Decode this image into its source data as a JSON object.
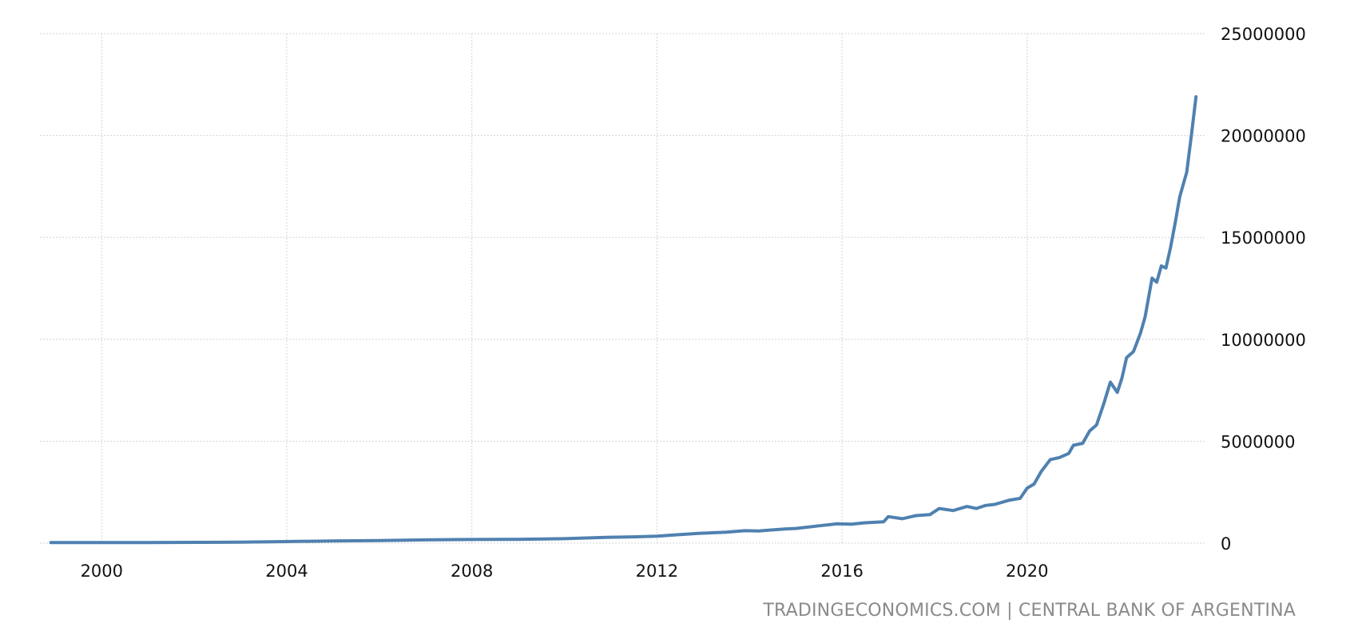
{
  "source": "TRADINGECONOMICS.COM | CENTRAL BANK OF ARGENTINA",
  "chart_data": {
    "type": "line",
    "title": "",
    "xlabel": "",
    "ylabel": "",
    "xlim": [
      1998.7,
      2023.75
    ],
    "ylim": [
      0,
      25000000
    ],
    "x_ticks": [
      2000,
      2004,
      2008,
      2012,
      2016,
      2020
    ],
    "x_tick_labels": [
      "2000",
      "2004",
      "2008",
      "2012",
      "2016",
      "2020"
    ],
    "y_ticks": [
      0,
      5000000,
      10000000,
      15000000,
      20000000,
      25000000
    ],
    "y_tick_labels": [
      "0",
      "5000000",
      "10000000",
      "15000000",
      "20000000",
      "25000000"
    ],
    "y_axis_position": "right",
    "grid": true,
    "legend": "none",
    "line_color": "#4f81b0",
    "series": [
      {
        "x": [
          1998.9,
          2000,
          2001,
          2002,
          2003,
          2004,
          2005,
          2006,
          2007,
          2008,
          2009,
          2010,
          2011,
          2011.5,
          2012,
          2012.5,
          2012.9,
          2013.5,
          2013.9,
          2014.2,
          2014.5,
          2014.8,
          2015,
          2015.5,
          2015.9,
          2016.2,
          2016.5,
          2016.9,
          2017,
          2017.3,
          2017.6,
          2017.9,
          2018.1,
          2018.4,
          2018.7,
          2018.9,
          2019.1,
          2019.3,
          2019.6,
          2019.85,
          2020,
          2020.15,
          2020.3,
          2020.5,
          2020.7,
          2020.9,
          2021,
          2021.2,
          2021.35,
          2021.5,
          2021.65,
          2021.8,
          2021.95,
          2022.05,
          2022.15,
          2022.3,
          2022.45,
          2022.55,
          2022.7,
          2022.8,
          2022.9,
          2023,
          2023.1,
          2023.2,
          2023.3,
          2023.45,
          2023.55,
          2023.65
        ],
        "y": [
          30000,
          30000,
          30000,
          40000,
          50000,
          80000,
          110000,
          130000,
          160000,
          180000,
          190000,
          220000,
          290000,
          310000,
          340000,
          420000,
          480000,
          540000,
          610000,
          600000,
          650000,
          700000,
          720000,
          850000,
          950000,
          930000,
          1000000,
          1050000,
          1300000,
          1200000,
          1350000,
          1400000,
          1700000,
          1600000,
          1800000,
          1700000,
          1850000,
          1900000,
          2100000,
          2200000,
          2700000,
          2900000,
          3500000,
          4100000,
          4200000,
          4400000,
          4800000,
          4900000,
          5500000,
          5800000,
          6800000,
          7900000,
          7400000,
          8100000,
          9100000,
          9400000,
          10300000,
          11100000,
          13000000,
          12800000,
          13600000,
          13500000,
          14500000,
          15700000,
          17000000,
          18200000,
          20000000,
          21900000
        ]
      }
    ]
  }
}
